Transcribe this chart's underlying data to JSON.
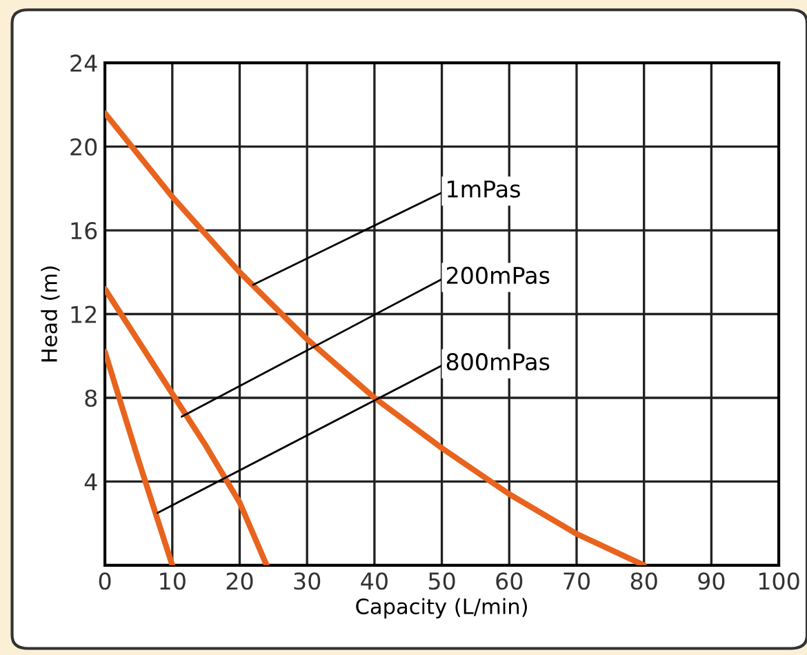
{
  "chart_data": {
    "type": "line",
    "xlabel": "Capacity (L/min)",
    "ylabel": "Head (m)",
    "xlim": [
      0,
      100
    ],
    "xticks": [
      0,
      10,
      20,
      30,
      40,
      50,
      60,
      70,
      80,
      90,
      100
    ],
    "ylim": [
      0,
      24
    ],
    "yticks": [
      {
        "value": 0,
        "label": null
      },
      4,
      8,
      12,
      16,
      20,
      24
    ],
    "grid": true,
    "marker": "none",
    "line_style": "solid",
    "legend": false,
    "series": [
      {
        "color": "#e8641e",
        "x": [
          0,
          10,
          20,
          30,
          40,
          50,
          60,
          70,
          80
        ],
        "values": [
          21.6,
          17.6,
          14.0,
          10.8,
          8.0,
          5.6,
          3.4,
          1.5,
          0
        ]
      },
      {
        "color": "#e8641e",
        "x": [
          0,
          5,
          10,
          15,
          20,
          24
        ],
        "values": [
          13.2,
          10.7,
          8.2,
          5.7,
          3.0,
          0
        ]
      },
      {
        "color": "#e8641e",
        "x": [
          0,
          5,
          10
        ],
        "values": [
          10.2,
          5.0,
          0
        ]
      }
    ],
    "annotations": [
      {
        "text": "1mPas",
        "x": 22,
        "y": 13.4
      },
      {
        "text": "200mPas",
        "x": 11.4,
        "y": 7.1
      },
      {
        "text": "800mPas",
        "x": 7.8,
        "y": 2.5
      }
    ]
  }
}
